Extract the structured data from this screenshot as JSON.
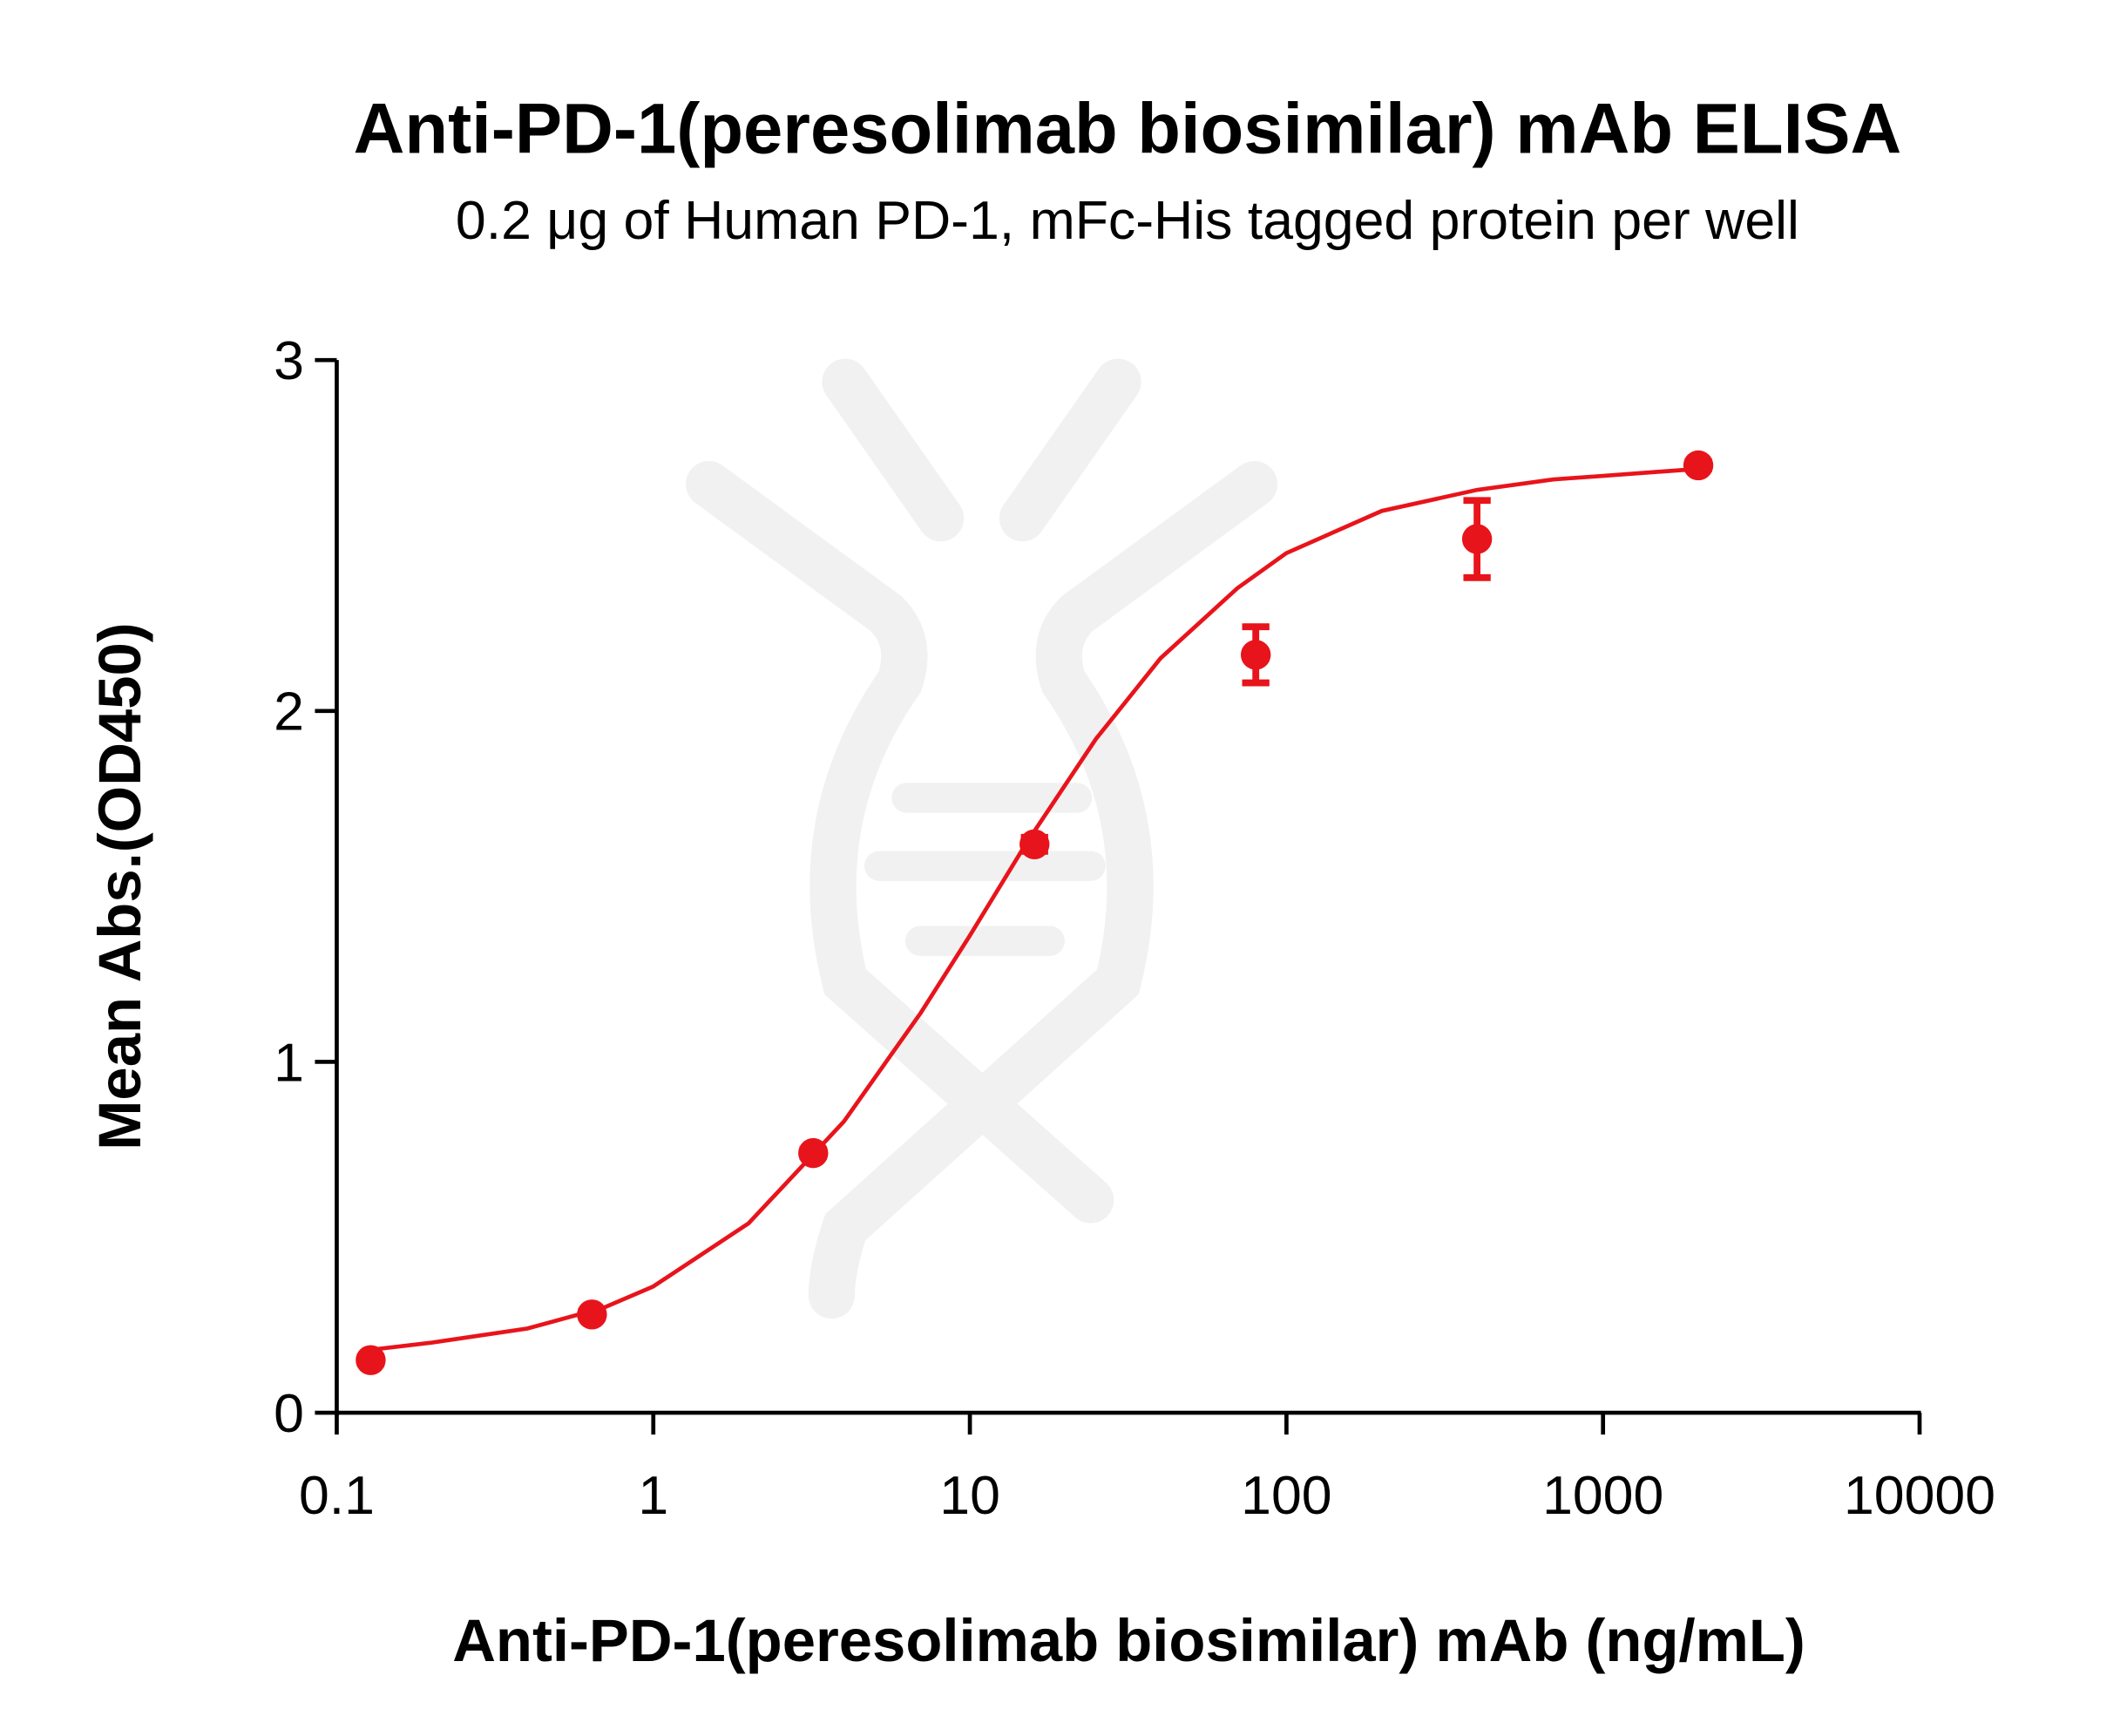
{
  "chart_data": {
    "type": "scatter",
    "title": "Anti-PD-1(peresolimab biosimilar) mAb ELISA",
    "subtitle": "0.2 μg of Human PD-1, mFc-His tagged protein per well",
    "x_label": "Anti-PD-1(peresolimab biosimilar) mAb (ng/mL)",
    "y_label": "Mean Abs.(OD450)",
    "x_scale": "log",
    "xlim": [
      0.1,
      10000
    ],
    "xticks": [
      0.1,
      1,
      10,
      100,
      1000,
      10000
    ],
    "ylim": [
      0,
      3
    ],
    "yticks": [
      0,
      1,
      2,
      3
    ],
    "color": "#e8141b",
    "series": [
      {
        "x": [
          0.128,
          0.64,
          3.2,
          16,
          80,
          400,
          2000
        ],
        "values": [
          0.15,
          0.28,
          0.74,
          1.62,
          2.16,
          2.49,
          2.7
        ],
        "errors": [
          0.01,
          0.01,
          0.01,
          0.02,
          0.08,
          0.11,
          0.01
        ]
      }
    ],
    "fit_curve": {
      "x": [
        0.13,
        0.2,
        0.4,
        0.7,
        1,
        2,
        4,
        7,
        10,
        15,
        25,
        40,
        70,
        100,
        200,
        400,
        700,
        1000,
        2000
      ],
      "values": [
        0.18,
        0.2,
        0.24,
        0.3,
        0.36,
        0.54,
        0.83,
        1.14,
        1.36,
        1.62,
        1.92,
        2.15,
        2.35,
        2.45,
        2.57,
        2.63,
        2.66,
        2.67,
        2.69
      ]
    }
  }
}
